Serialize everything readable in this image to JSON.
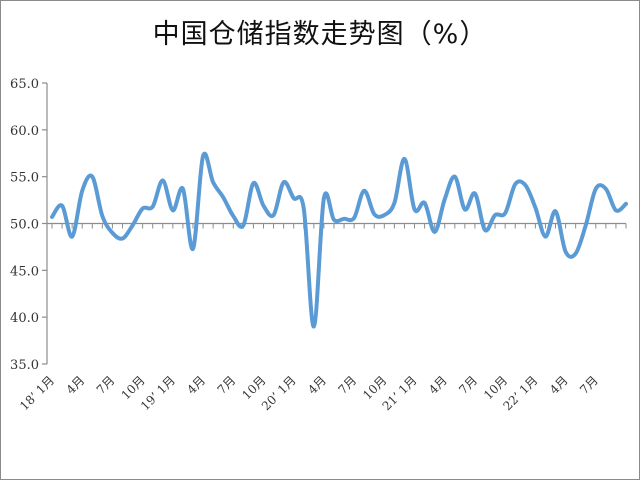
{
  "chart_data": {
    "type": "line",
    "title": "中国仓储指数走势图（%）",
    "xlabel": "",
    "ylabel": "",
    "ylim": [
      35,
      65
    ],
    "yticks": [
      "65.0",
      "60.0",
      "55.0",
      "50.0",
      "45.0",
      "40.0",
      "35.0"
    ],
    "baseline": 50,
    "grid": false,
    "legend": "none",
    "line_color": "#5B9BD5",
    "x": [
      "2018-01",
      "2018-02",
      "2018-03",
      "2018-04",
      "2018-05",
      "2018-06",
      "2018-07",
      "2018-08",
      "2018-09",
      "2018-10",
      "2018-11",
      "2018-12",
      "2019-01",
      "2019-02",
      "2019-03",
      "2019-04",
      "2019-05",
      "2019-06",
      "2019-07",
      "2019-08",
      "2019-09",
      "2019-10",
      "2019-11",
      "2019-12",
      "2020-01",
      "2020-02",
      "2020-03",
      "2020-04",
      "2020-05",
      "2020-06",
      "2020-07",
      "2020-08",
      "2020-09",
      "2020-10",
      "2020-11",
      "2020-12",
      "2021-01",
      "2021-02",
      "2021-03",
      "2021-04",
      "2021-05",
      "2021-06",
      "2021-07",
      "2021-08",
      "2021-09",
      "2021-10",
      "2021-11",
      "2021-12",
      "2022-01",
      "2022-02",
      "2022-03",
      "2022-04",
      "2022-05",
      "2022-06",
      "2022-07",
      "2022-08",
      "2022-09",
      "2022-10"
    ],
    "values": [
      50.7,
      51.9,
      48.6,
      53.5,
      55.0,
      50.8,
      49.0,
      48.4,
      49.8,
      51.6,
      51.8,
      54.6,
      51.4,
      53.7,
      47.3,
      57.2,
      54.4,
      52.8,
      50.8,
      49.8,
      54.3,
      51.9,
      50.9,
      54.4,
      52.7,
      51.6,
      39.0,
      52.7,
      50.4,
      50.5,
      50.6,
      53.5,
      51.0,
      50.9,
      52.2,
      56.9,
      51.5,
      52.2,
      49.1,
      52.6,
      55.0,
      51.5,
      53.2,
      49.3,
      50.9,
      51.1,
      54.2,
      54.1,
      51.7,
      48.6,
      51.3,
      47.0,
      46.8,
      49.8,
      53.7,
      53.7,
      51.4,
      52.1
    ],
    "xtick_labels": [
      {
        "label": "18’ 1月",
        "index": 0
      },
      {
        "label": "4月",
        "index": 3
      },
      {
        "label": "7月",
        "index": 6
      },
      {
        "label": "10月",
        "index": 9
      },
      {
        "label": "19’ 1月",
        "index": 12
      },
      {
        "label": "4月",
        "index": 15
      },
      {
        "label": "7月",
        "index": 18
      },
      {
        "label": "10月",
        "index": 21
      },
      {
        "label": "20’ 1月",
        "index": 24
      },
      {
        "label": "4月",
        "index": 27
      },
      {
        "label": "7月",
        "index": 30
      },
      {
        "label": "10月",
        "index": 33
      },
      {
        "label": "21’ 1月",
        "index": 36
      },
      {
        "label": "4月",
        "index": 39
      },
      {
        "label": "7月",
        "index": 42
      },
      {
        "label": "10月",
        "index": 45
      },
      {
        "label": "22’ 1月",
        "index": 48
      },
      {
        "label": "4月",
        "index": 51
      },
      {
        "label": "7月",
        "index": 54
      }
    ]
  }
}
